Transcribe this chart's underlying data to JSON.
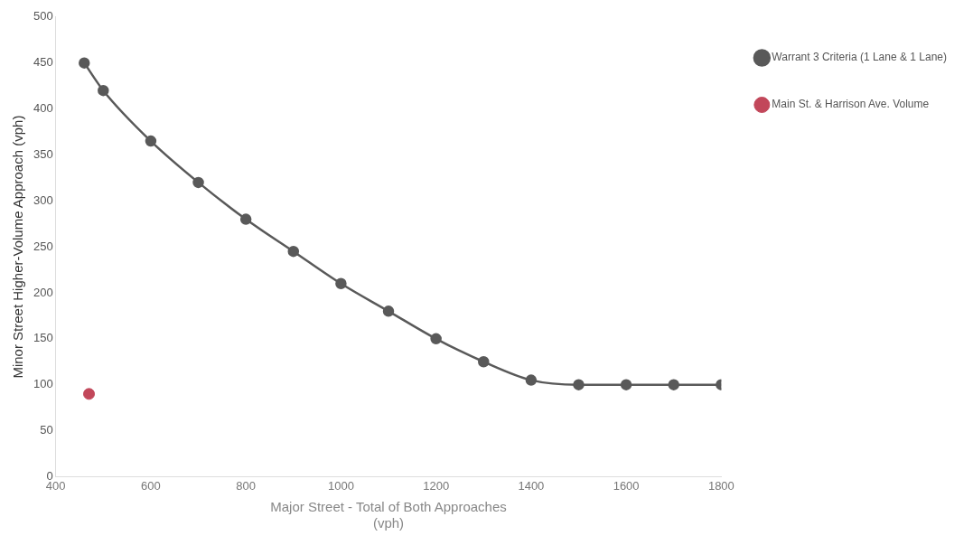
{
  "chart_data": {
    "type": "line",
    "xlabel": "Major Street - Total of Both Approaches (vph)",
    "ylabel": "Minor Street Higher-Volume Approach (vph)",
    "xlim": [
      400,
      1800
    ],
    "xticks": [
      400,
      600,
      800,
      1000,
      1200,
      1400,
      1600,
      1800
    ],
    "ylim": [
      0,
      500
    ],
    "yticks": [
      0,
      50,
      100,
      150,
      200,
      250,
      300,
      350,
      400,
      450,
      500
    ],
    "grid": false,
    "legend": "right",
    "marker": "circle",
    "series": [
      {
        "name": "Warrant 3 Criteria (1 Lane & 1 Lane)",
        "color": "#595959",
        "x": [
          460,
          500,
          600,
          700,
          800,
          900,
          1000,
          1100,
          1200,
          1300,
          1400,
          1500,
          1600,
          1700,
          1800
        ],
        "values": [
          450,
          420,
          365,
          320,
          280,
          245,
          210,
          180,
          150,
          125,
          105,
          100,
          100,
          100,
          100
        ]
      },
      {
        "name": "Main St. & Harrison Ave. Volume",
        "type": "scatter",
        "color": "#c2475a",
        "x": [
          470
        ],
        "values": [
          90
        ]
      }
    ]
  }
}
